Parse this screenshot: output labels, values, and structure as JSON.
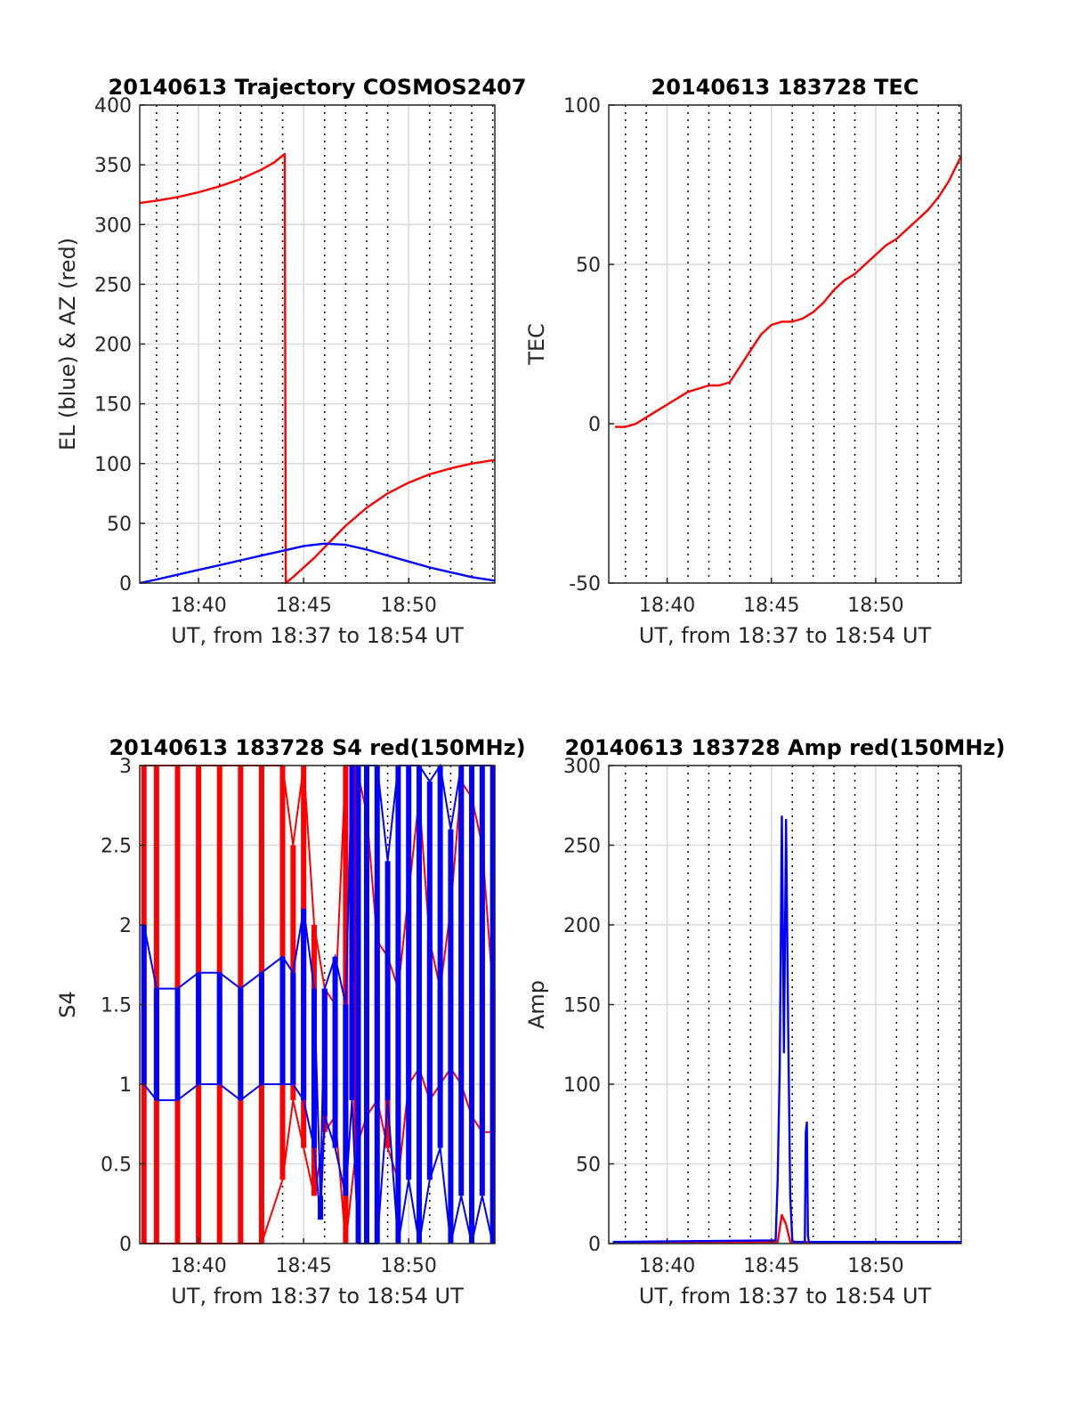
{
  "figure": {
    "colors": {
      "red": "#ff0000",
      "blue": "#0000ff",
      "grid": "#d9d9d9",
      "axis": "#262626"
    },
    "x_tick_labels": [
      "18:40",
      "18:45",
      "18:50"
    ],
    "x_label": "UT, from 18:37 to 18:54 UT"
  },
  "chart_data": [
    {
      "id": "trajectory",
      "type": "line",
      "title": "20140613 Trajectory COSMOS2407",
      "xlabel": "UT, from 18:37 to 18:54 UT",
      "ylabel": "EL (blue) & AZ (red)",
      "x_unit": "minutes after 18:00 UT",
      "xlim": [
        37.2,
        54.1
      ],
      "ylim": [
        0,
        400
      ],
      "yticks": [
        0,
        50,
        100,
        150,
        200,
        250,
        300,
        350,
        400
      ],
      "xticks": [
        40,
        45,
        50
      ],
      "grid": true,
      "series": [
        {
          "color": "#ff0000",
          "x": [
            37.2,
            38,
            39,
            40,
            41,
            42,
            43,
            43.6,
            44.1,
            44.15,
            44.5,
            45,
            45.5,
            46,
            46.5,
            47,
            48,
            49,
            50,
            51,
            52,
            53,
            54.1
          ],
          "y": [
            318,
            320,
            323,
            327,
            332,
            338,
            346,
            352,
            359,
            0,
            5,
            13,
            21,
            30,
            39,
            48,
            63,
            75,
            84,
            91,
            96,
            100,
            103
          ]
        },
        {
          "color": "#0000ff",
          "x": [
            37.2,
            38,
            39,
            40,
            41,
            42,
            43,
            44,
            45,
            46,
            47,
            48,
            49,
            50,
            51,
            52,
            53,
            54.1
          ],
          "y": [
            0,
            3,
            7,
            11,
            15,
            19,
            23,
            27,
            31,
            33,
            32,
            28,
            23,
            18,
            13,
            9,
            5,
            2
          ]
        }
      ]
    },
    {
      "id": "tec",
      "type": "line",
      "title": "20140613 183728 TEC",
      "xlabel": "UT, from 18:37 to 18:54 UT",
      "ylabel": "TEC",
      "x_unit": "minutes after 18:00 UT",
      "xlim": [
        37.2,
        54.1
      ],
      "ylim": [
        -50,
        100
      ],
      "yticks": [
        -50,
        0,
        50,
        100
      ],
      "xticks": [
        40,
        45,
        50
      ],
      "grid": true,
      "series": [
        {
          "color": "#ff0000",
          "x": [
            37.5,
            38,
            38.5,
            39,
            39.5,
            40,
            40.5,
            41,
            41.5,
            42,
            42.5,
            43,
            43.5,
            44,
            44.5,
            45,
            45.5,
            46,
            46.5,
            47,
            47.5,
            48,
            48.5,
            49,
            49.5,
            50,
            50.5,
            51,
            51.5,
            52,
            52.5,
            53,
            53.5,
            54.1
          ],
          "y": [
            -1,
            -1,
            0,
            2,
            4,
            6,
            8,
            10,
            11,
            12,
            12,
            13,
            18,
            23,
            28,
            31,
            32,
            32,
            33,
            35,
            38,
            42,
            45,
            47,
            50,
            53,
            56,
            58,
            61,
            64,
            67,
            71,
            76,
            84
          ]
        }
      ]
    },
    {
      "id": "s4",
      "type": "line",
      "title": "20140613 183728 S4 red(150MHz)",
      "xlabel": "UT, from 18:37 to 18:54 UT",
      "ylabel": "S4",
      "x_unit": "minutes after 18:00 UT",
      "xlim": [
        37.2,
        54.1
      ],
      "ylim": [
        0,
        3
      ],
      "yticks": [
        0,
        0.5,
        1,
        1.5,
        2,
        2.5,
        3
      ],
      "xticks": [
        40,
        45,
        50
      ],
      "grid": true,
      "series": [
        {
          "color": "#ff0000",
          "x": [
            37.4,
            38,
            39,
            40,
            41,
            42,
            43,
            44,
            44.5,
            45,
            45.5,
            46,
            46.5,
            47,
            47.5,
            48,
            48.5,
            49,
            49.5,
            50,
            50.5,
            51,
            51.5,
            52,
            52.5,
            53,
            53.5,
            54
          ],
          "low": [
            0,
            0,
            0,
            0,
            0,
            0,
            0,
            0.4,
            0.9,
            0.6,
            0.3,
            0.7,
            0.8,
            0,
            0.6,
            0.8,
            0.9,
            0.6,
            0.4,
            1.0,
            1.1,
            0.9,
            1.0,
            1.1,
            1.0,
            0.8,
            0.7,
            0.7
          ],
          "high": [
            3,
            3,
            3,
            3,
            3,
            3,
            3,
            3,
            2.5,
            3,
            2.0,
            1.6,
            1.5,
            3,
            3,
            2.7,
            1.9,
            1.8,
            1.6,
            2.2,
            2.8,
            1.9,
            1.6,
            2.1,
            2.9,
            2.8,
            2.5,
            1.6
          ]
        },
        {
          "color": "#0000ff",
          "x": [
            37.4,
            38,
            39,
            40,
            41,
            42,
            43,
            44,
            44.5,
            45,
            45.5,
            45.8,
            46,
            46.5,
            47,
            47.3,
            47.6,
            48,
            48.5,
            49,
            49.5,
            50,
            50.5,
            51,
            51.5,
            52,
            52.5,
            53,
            53.5,
            54
          ],
          "low": [
            1.0,
            0.9,
            0.9,
            1.0,
            1.0,
            0.9,
            1.0,
            1.0,
            1.0,
            0.9,
            0.6,
            0.15,
            0.8,
            0.6,
            0.3,
            0.9,
            0,
            0,
            0,
            0.9,
            0,
            0.4,
            0,
            0.4,
            0.6,
            0,
            0.3,
            0,
            0.3,
            0
          ],
          "high": [
            2.0,
            1.6,
            1.6,
            1.7,
            1.7,
            1.6,
            1.7,
            1.8,
            1.7,
            2.1,
            1.6,
            0.3,
            1.6,
            1.8,
            1.5,
            3,
            3,
            3,
            3,
            2.4,
            3,
            3,
            3,
            2.9,
            3,
            2.6,
            3,
            3,
            3,
            3
          ]
        }
      ]
    },
    {
      "id": "amp",
      "type": "line",
      "title": "20140613 183728 Amp red(150MHz)",
      "xlabel": "UT, from 18:37 to 18:54 UT",
      "ylabel": "Amp",
      "x_unit": "minutes after 18:00 UT",
      "xlim": [
        37.2,
        54.1
      ],
      "ylim": [
        0,
        300
      ],
      "yticks": [
        0,
        50,
        100,
        150,
        200,
        250,
        300
      ],
      "xticks": [
        40,
        45,
        50
      ],
      "grid": true,
      "series": [
        {
          "color": "#ff0000",
          "x": [
            37.4,
            45.3,
            45.5,
            45.7,
            45.9,
            54.1
          ],
          "y": [
            1,
            1,
            18,
            12,
            1,
            1
          ]
        },
        {
          "color": "#0000ff",
          "x": [
            37.4,
            45.2,
            45.3,
            45.4,
            45.5,
            45.6,
            45.7,
            45.8,
            45.9,
            46.0,
            46.1,
            46.6,
            46.65,
            46.7,
            46.75,
            46.8,
            54.1
          ],
          "y": [
            1,
            2,
            40,
            110,
            268,
            120,
            266,
            140,
            30,
            2,
            1,
            1,
            70,
            76,
            5,
            1,
            1
          ]
        }
      ]
    }
  ]
}
